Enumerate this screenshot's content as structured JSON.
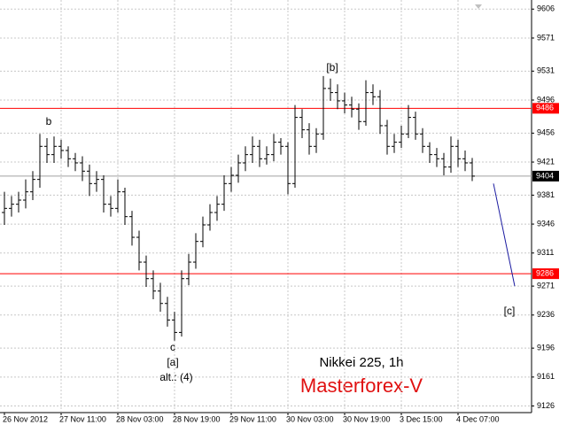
{
  "chart_data": {
    "type": "ohlc",
    "title": "Nikkei 225, 1h",
    "watermark": "Masterforex-V",
    "color": "#000000",
    "grid": true,
    "categories": [
      "26 Nov 2012",
      null,
      null,
      null,
      null,
      null,
      null,
      null,
      "27 Nov 11:00",
      null,
      null,
      null,
      null,
      null,
      null,
      null,
      "28 Nov 03:00",
      null,
      null,
      null,
      null,
      null,
      null,
      null,
      "28 Nov 19:00",
      null,
      null,
      null,
      null,
      null,
      null,
      null,
      "29 Nov 11:00",
      null,
      null,
      null,
      null,
      null,
      null,
      null,
      "30 Nov 03:00",
      null,
      null,
      null,
      null,
      null,
      null,
      null,
      "30 Nov 19:00",
      null,
      null,
      null,
      null,
      null,
      null,
      null,
      "3 Dec 15:00",
      null,
      null,
      null,
      null,
      null,
      null,
      null,
      "4 Dec 07:00",
      null,
      null
    ],
    "open": [
      9360,
      9365,
      9370,
      9375,
      9385,
      9400,
      9440,
      9430,
      9440,
      9435,
      9425,
      9420,
      9410,
      9395,
      9400,
      9370,
      9365,
      9385,
      9355,
      9330,
      9300,
      9280,
      9265,
      9250,
      9230,
      9215,
      9280,
      9300,
      9325,
      9345,
      9360,
      9370,
      9395,
      9405,
      9420,
      9430,
      9440,
      9425,
      9430,
      9445,
      9440,
      9395,
      9475,
      9460,
      9440,
      9455,
      9510,
      9505,
      9495,
      9490,
      9485,
      9470,
      9505,
      9500,
      9465,
      9440,
      9445,
      9455,
      9475,
      9455,
      9440,
      9430,
      9425,
      9415,
      9440,
      9425,
      9420
    ],
    "high": [
      9385,
      9380,
      9385,
      9400,
      9410,
      9455,
      9450,
      9452,
      9448,
      9440,
      9432,
      9428,
      9418,
      9410,
      9405,
      9380,
      9400,
      9390,
      9362,
      9338,
      9308,
      9290,
      9275,
      9258,
      9240,
      9290,
      9310,
      9335,
      9355,
      9370,
      9380,
      9405,
      9415,
      9430,
      9440,
      9452,
      9448,
      9440,
      9455,
      9450,
      9445,
      9490,
      9485,
      9468,
      9462,
      9525,
      9522,
      9515,
      9505,
      9500,
      9492,
      9520,
      9515,
      9508,
      9472,
      9455,
      9465,
      9490,
      9482,
      9462,
      9445,
      9438,
      9432,
      9452,
      9448,
      9435,
      9426
    ],
    "low": [
      9345,
      9355,
      9360,
      9365,
      9375,
      9390,
      9420,
      9420,
      9425,
      9415,
      9410,
      9398,
      9380,
      9385,
      9360,
      9355,
      9360,
      9345,
      9320,
      9290,
      9270,
      9255,
      9240,
      9222,
      9205,
      9210,
      9272,
      9292,
      9318,
      9338,
      9350,
      9362,
      9385,
      9396,
      9410,
      9420,
      9415,
      9418,
      9422,
      9430,
      9382,
      9390,
      9450,
      9430,
      9432,
      9448,
      9495,
      9485,
      9480,
      9475,
      9460,
      9465,
      9490,
      9455,
      9430,
      9432,
      9438,
      9450,
      9448,
      9432,
      9420,
      9415,
      9405,
      9408,
      9415,
      9410,
      9398
    ],
    "close": [
      9365,
      9370,
      9375,
      9385,
      9400,
      9440,
      9430,
      9440,
      9435,
      9425,
      9420,
      9410,
      9395,
      9400,
      9370,
      9365,
      9385,
      9355,
      9330,
      9300,
      9280,
      9265,
      9250,
      9230,
      9215,
      9280,
      9300,
      9325,
      9345,
      9360,
      9370,
      9395,
      9405,
      9420,
      9430,
      9440,
      9425,
      9430,
      9445,
      9440,
      9395,
      9475,
      9460,
      9440,
      9455,
      9510,
      9505,
      9495,
      9490,
      9485,
      9470,
      9505,
      9500,
      9465,
      9440,
      9445,
      9455,
      9475,
      9455,
      9440,
      9430,
      9425,
      9415,
      9440,
      9425,
      9420,
      9404
    ],
    "ylim": [
      9118,
      9617
    ],
    "yticks": [
      9606,
      9571,
      9531,
      9496,
      9456,
      9421,
      9381,
      9346,
      9311,
      9271,
      9236,
      9196,
      9161,
      9126
    ],
    "levels": [
      {
        "value": 9486,
        "color": "#ff0000"
      },
      {
        "value": 9286,
        "color": "#ff0000"
      },
      {
        "value": 9404,
        "color": "#a0a0a0"
      }
    ],
    "projection": {
      "x": [
        69,
        72
      ],
      "values": [
        9395,
        9271
      ],
      "color": "#1a1aa0"
    },
    "annotations": [
      "b",
      "[b]",
      "c",
      "[a]",
      "alt.: (4)",
      "[c]"
    ]
  }
}
